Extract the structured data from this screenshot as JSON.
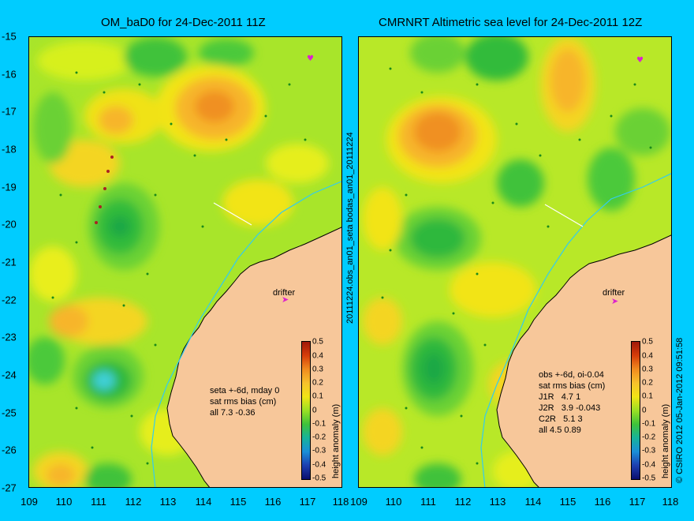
{
  "left_title": "OM_baD0 for 24-Dec-2011 11Z",
  "right_title": "CMRNRT Altimetric sea level  for 24-Dec-2011 12Z",
  "y_ticks": [
    "-15",
    "-16",
    "-17",
    "-18",
    "-19",
    "-20",
    "-21",
    "-22",
    "-23",
    "-24",
    "-25",
    "-26",
    "-27"
  ],
  "x_ticks": [
    "109",
    "110",
    "111",
    "112",
    "113",
    "114",
    "115",
    "116",
    "117",
    "118"
  ],
  "vertical_label": "20111224.obs_an01_seta   bodas_an01_20111224",
  "left_stats": "seta +-6d, mday 0\nsat rms bias (cm)\nall 7.3 -0.36",
  "right_stats": "obs +-6d, oi-0.04\nsat rms bias (cm)\nJ1R   4.7 1\nJ2R   3.9 -0.043\nC2R   5.1 3\nall 4.5 0.89",
  "drifter_label": "drifter",
  "colorbar": {
    "label": "height anomaly (m)",
    "ticks": [
      "0.5",
      "0.4",
      "0.3",
      "0.2",
      "0.1",
      "0",
      "-0.1",
      "-0.2",
      "-0.3",
      "-0.4",
      "-0.5"
    ]
  },
  "copyright": "© CSIRO 2012  05-Jan-2012 09:51:58",
  "colors": {
    "background": "#00ccff",
    "land": "#f7c79a",
    "base": "#9be024"
  }
}
